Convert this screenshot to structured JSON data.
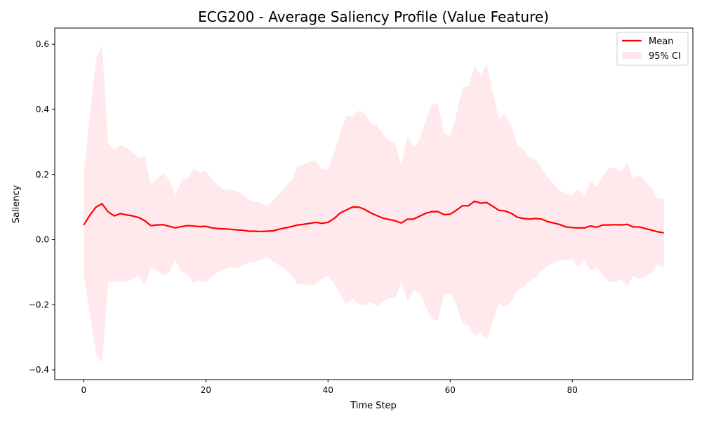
{
  "chart_data": {
    "type": "line",
    "title": "ECG200 - Average Saliency Profile (Value Feature)",
    "xlabel": "Time Step",
    "ylabel": "Saliency",
    "xlim": [
      -4.75,
      99.75
    ],
    "ylim": [
      -0.43,
      0.65
    ],
    "xticks": [
      0,
      20,
      40,
      60,
      80
    ],
    "yticks": [
      -0.4,
      -0.2,
      0.0,
      0.2,
      0.4,
      0.6
    ],
    "x_tick_labels": [
      "0",
      "20",
      "40",
      "60",
      "80"
    ],
    "y_tick_labels": [
      "−0.4",
      "−0.2",
      "0.0",
      "0.2",
      "0.4",
      "0.6"
    ],
    "grid": false,
    "legend_position": "top-right",
    "series": [
      {
        "name": "Mean",
        "kind": "line",
        "color": "#ff0000",
        "x": [
          0,
          1,
          2,
          3,
          4,
          5,
          6,
          7,
          8,
          9,
          10,
          11,
          12,
          13,
          14,
          15,
          16,
          17,
          18,
          19,
          20,
          21,
          22,
          23,
          24,
          25,
          26,
          27,
          28,
          29,
          30,
          31,
          32,
          33,
          34,
          35,
          36,
          37,
          38,
          39,
          40,
          41,
          42,
          43,
          44,
          45,
          46,
          47,
          48,
          49,
          50,
          51,
          52,
          53,
          54,
          55,
          56,
          57,
          58,
          59,
          60,
          61,
          62,
          63,
          64,
          65,
          66,
          67,
          68,
          69,
          70,
          71,
          72,
          73,
          74,
          75,
          76,
          77,
          78,
          79,
          80,
          81,
          82,
          83,
          84,
          85,
          86,
          87,
          88,
          89,
          90,
          91,
          92,
          93,
          94,
          95
        ],
        "values": [
          0.045,
          0.075,
          0.1,
          0.11,
          0.085,
          0.073,
          0.08,
          0.076,
          0.073,
          0.068,
          0.058,
          0.043,
          0.045,
          0.046,
          0.041,
          0.036,
          0.04,
          0.043,
          0.042,
          0.04,
          0.041,
          0.036,
          0.034,
          0.033,
          0.032,
          0.03,
          0.029,
          0.026,
          0.026,
          0.025,
          0.026,
          0.027,
          0.032,
          0.036,
          0.04,
          0.045,
          0.047,
          0.05,
          0.053,
          0.05,
          0.053,
          0.065,
          0.082,
          0.091,
          0.1,
          0.1,
          0.093,
          0.082,
          0.074,
          0.066,
          0.062,
          0.058,
          0.051,
          0.063,
          0.063,
          0.072,
          0.081,
          0.086,
          0.086,
          0.077,
          0.078,
          0.09,
          0.104,
          0.104,
          0.118,
          0.112,
          0.114,
          0.102,
          0.09,
          0.088,
          0.081,
          0.069,
          0.065,
          0.063,
          0.065,
          0.063,
          0.055,
          0.051,
          0.046,
          0.039,
          0.037,
          0.036,
          0.036,
          0.042,
          0.038,
          0.045,
          0.045,
          0.046,
          0.045,
          0.047,
          0.039,
          0.039,
          0.034,
          0.029,
          0.024,
          0.021
        ]
      },
      {
        "name": "95% CI",
        "kind": "band",
        "color": "#ffc0cb",
        "x": [
          0,
          1,
          2,
          3,
          4,
          5,
          6,
          7,
          8,
          9,
          10,
          11,
          12,
          13,
          14,
          15,
          16,
          17,
          18,
          19,
          20,
          21,
          22,
          23,
          24,
          25,
          26,
          27,
          28,
          29,
          30,
          31,
          32,
          33,
          34,
          35,
          36,
          37,
          38,
          39,
          40,
          41,
          42,
          43,
          44,
          45,
          46,
          47,
          48,
          49,
          50,
          51,
          52,
          53,
          54,
          55,
          56,
          57,
          58,
          59,
          60,
          61,
          62,
          63,
          64,
          65,
          66,
          67,
          68,
          69,
          70,
          71,
          72,
          73,
          74,
          75,
          76,
          77,
          78,
          79,
          80,
          81,
          82,
          83,
          84,
          85,
          86,
          87,
          88,
          89,
          90,
          91,
          92,
          93,
          94,
          95
        ],
        "upper": [
          0.2,
          0.38,
          0.555,
          0.6,
          0.295,
          0.278,
          0.29,
          0.283,
          0.268,
          0.25,
          0.258,
          0.17,
          0.188,
          0.203,
          0.185,
          0.137,
          0.18,
          0.19,
          0.218,
          0.207,
          0.212,
          0.186,
          0.166,
          0.154,
          0.153,
          0.15,
          0.14,
          0.122,
          0.118,
          0.113,
          0.104,
          0.12,
          0.14,
          0.163,
          0.183,
          0.226,
          0.232,
          0.24,
          0.242,
          0.22,
          0.216,
          0.265,
          0.33,
          0.38,
          0.378,
          0.397,
          0.388,
          0.355,
          0.35,
          0.323,
          0.305,
          0.295,
          0.23,
          0.317,
          0.283,
          0.307,
          0.365,
          0.415,
          0.42,
          0.325,
          0.32,
          0.382,
          0.467,
          0.472,
          0.533,
          0.507,
          0.538,
          0.45,
          0.373,
          0.385,
          0.35,
          0.292,
          0.278,
          0.253,
          0.248,
          0.22,
          0.19,
          0.17,
          0.15,
          0.143,
          0.137,
          0.156,
          0.136,
          0.178,
          0.163,
          0.196,
          0.22,
          0.22,
          0.21,
          0.236,
          0.185,
          0.2,
          0.18,
          0.158,
          0.125,
          0.125
        ],
        "lower": [
          -0.105,
          -0.23,
          -0.35,
          -0.38,
          -0.13,
          -0.13,
          -0.128,
          -0.13,
          -0.12,
          -0.11,
          -0.14,
          -0.085,
          -0.097,
          -0.11,
          -0.1,
          -0.063,
          -0.1,
          -0.107,
          -0.133,
          -0.125,
          -0.132,
          -0.113,
          -0.1,
          -0.09,
          -0.085,
          -0.088,
          -0.08,
          -0.07,
          -0.068,
          -0.063,
          -0.053,
          -0.067,
          -0.079,
          -0.093,
          -0.107,
          -0.137,
          -0.137,
          -0.141,
          -0.136,
          -0.12,
          -0.11,
          -0.135,
          -0.168,
          -0.198,
          -0.18,
          -0.197,
          -0.202,
          -0.19,
          -0.205,
          -0.19,
          -0.18,
          -0.18,
          -0.128,
          -0.19,
          -0.155,
          -0.165,
          -0.205,
          -0.245,
          -0.248,
          -0.17,
          -0.165,
          -0.2,
          -0.258,
          -0.262,
          -0.297,
          -0.285,
          -0.31,
          -0.248,
          -0.195,
          -0.208,
          -0.19,
          -0.155,
          -0.147,
          -0.127,
          -0.118,
          -0.095,
          -0.081,
          -0.073,
          -0.062,
          -0.065,
          -0.06,
          -0.085,
          -0.065,
          -0.095,
          -0.085,
          -0.108,
          -0.13,
          -0.13,
          -0.12,
          -0.143,
          -0.11,
          -0.122,
          -0.112,
          -0.1,
          -0.077,
          -0.085
        ]
      }
    ],
    "legend": [
      {
        "label": "Mean",
        "kind": "line",
        "color": "#ff0000"
      },
      {
        "label": "95% CI",
        "kind": "band",
        "color": "#ffc0cb"
      }
    ]
  }
}
